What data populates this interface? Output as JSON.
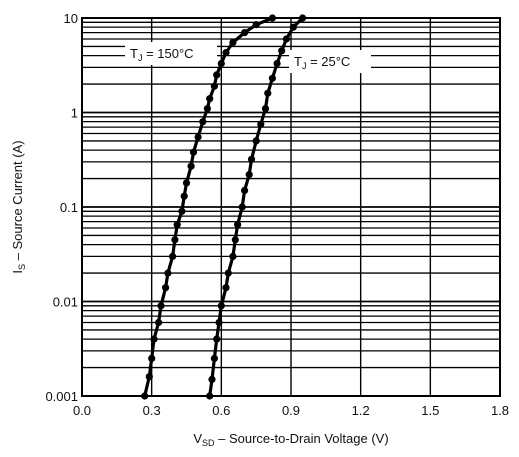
{
  "chart_data": {
    "type": "line",
    "xlabel": {
      "main": "V",
      "sub": "SD",
      "rest": " – Source-to-Drain Voltage (V)"
    },
    "ylabel": {
      "main": "I",
      "sub": "S",
      "rest": " – Source Current (A)"
    },
    "xlim": [
      0,
      1.8
    ],
    "ylim": [
      0.001,
      10
    ],
    "yscale": "log",
    "grid": true,
    "x_ticks": [
      0.0,
      0.3,
      0.6,
      0.9,
      1.2,
      1.5,
      1.8
    ],
    "x_tick_labels": [
      "0.0",
      "0.3",
      "0.6",
      "0.9",
      "1.2",
      "1.5",
      "1.8"
    ],
    "y_ticks": [
      0.001,
      0.01,
      0.1,
      1,
      10
    ],
    "y_tick_labels": [
      "0.001",
      "0.01",
      "0.1",
      "1",
      "10"
    ],
    "annotations": [
      {
        "main": "T",
        "sub": "J",
        "rest": " = 150°C",
        "series_index": 0
      },
      {
        "main": "T",
        "sub": "J",
        "rest": " = 25°C",
        "series_index": 1
      }
    ],
    "series": [
      {
        "x": [
          0.27,
          0.29,
          0.3,
          0.31,
          0.33,
          0.34,
          0.36,
          0.37,
          0.39,
          0.4,
          0.41,
          0.43,
          0.44,
          0.45,
          0.47,
          0.48,
          0.5,
          0.52,
          0.54,
          0.55,
          0.57,
          0.58,
          0.6,
          0.62,
          0.65,
          0.7,
          0.75,
          0.82
        ],
        "y": [
          0.001,
          0.0016,
          0.0025,
          0.004,
          0.006,
          0.009,
          0.014,
          0.02,
          0.03,
          0.045,
          0.065,
          0.09,
          0.13,
          0.18,
          0.27,
          0.38,
          0.55,
          0.8,
          1.1,
          1.4,
          1.9,
          2.5,
          3.3,
          4.3,
          5.5,
          7.0,
          8.5,
          10
        ]
      },
      {
        "x": [
          0.55,
          0.56,
          0.57,
          0.58,
          0.59,
          0.6,
          0.62,
          0.63,
          0.65,
          0.66,
          0.67,
          0.69,
          0.7,
          0.72,
          0.73,
          0.75,
          0.77,
          0.79,
          0.8,
          0.82,
          0.84,
          0.86,
          0.88,
          0.91,
          0.95
        ],
        "y": [
          0.001,
          0.0015,
          0.0025,
          0.004,
          0.006,
          0.009,
          0.014,
          0.02,
          0.03,
          0.045,
          0.065,
          0.1,
          0.15,
          0.22,
          0.32,
          0.5,
          0.75,
          1.1,
          1.6,
          2.3,
          3.3,
          4.5,
          6.0,
          8.0,
          10
        ]
      }
    ]
  }
}
